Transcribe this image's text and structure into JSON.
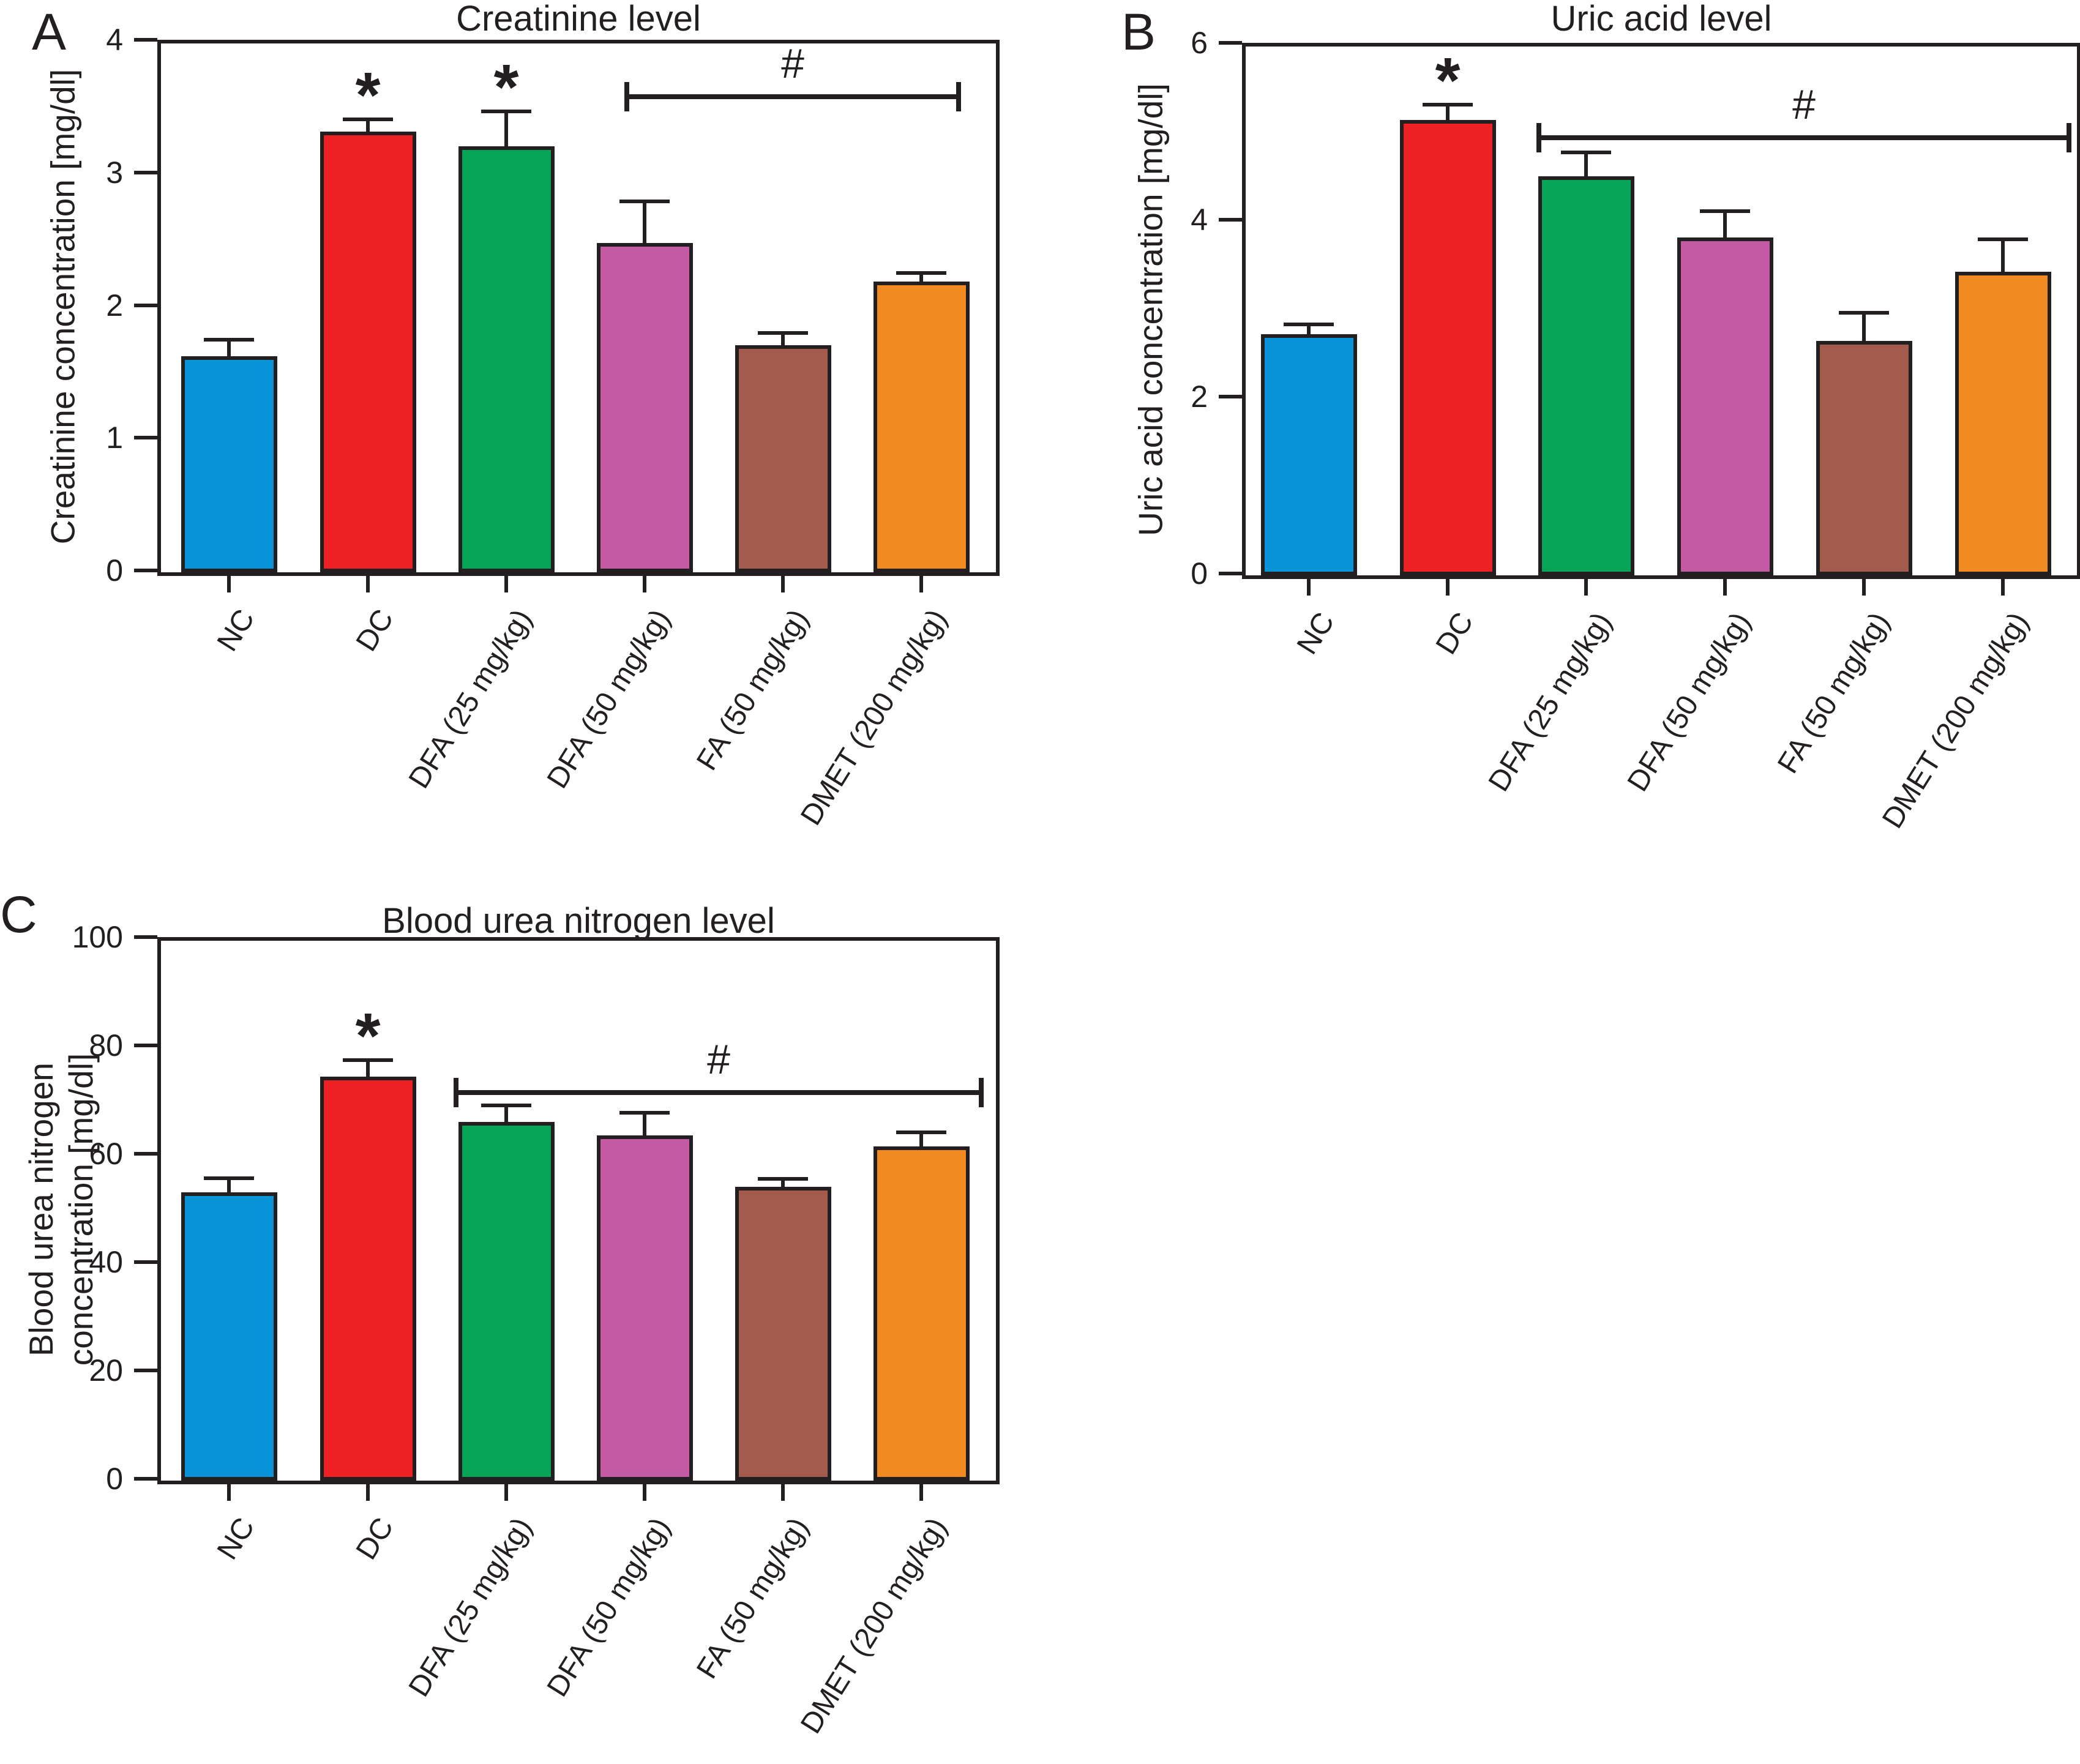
{
  "figure": {
    "background": "#FFFFFF",
    "ink_color": "#231F20",
    "symbols": {
      "significance_star": "*",
      "significance_hash": "#"
    }
  },
  "chart_data": [
    {
      "type": "bar",
      "panel_letter": "A",
      "title": "Creatinine level",
      "ylabel": "Creatinine concentration [mg/dl]",
      "ylabel_display": "Creatinine concentration [mg/dl]",
      "xlabel": "",
      "categories": [
        "NC",
        "DC",
        "DFA (25 mg/kg)",
        "DFA (50 mg/kg)",
        "FA (50 mg/kg)",
        "DMET (200 mg/kg)"
      ],
      "values": [
        1.63,
        3.32,
        3.21,
        2.48,
        1.71,
        2.19
      ],
      "errors": [
        0.11,
        0.08,
        0.25,
        0.3,
        0.08,
        0.05
      ],
      "ylim": [
        0,
        4
      ],
      "yticks": [
        0,
        1,
        2,
        3,
        4
      ],
      "grid": false,
      "legend": "none",
      "bar_colors": [
        "#0994D8",
        "#ED2024",
        "#06A456",
        "#C55AA4",
        "#A25B4C",
        "#F28A22"
      ],
      "star_indices": [
        1,
        2
      ],
      "bracket": {
        "label": "#",
        "from_category": "DFA (50 mg/kg)",
        "to_category": "DMET (200 mg/kg)",
        "y_value": 3.57
      }
    },
    {
      "type": "bar",
      "panel_letter": "B",
      "title": "Uric acid level",
      "ylabel": "Uric acid concentration [mg/dl]",
      "ylabel_display": "Uric acid concentration [mg/dl]",
      "xlabel": "",
      "categories": [
        "NC",
        "DC",
        "DFA (25 mg/kg)",
        "DFA (50 mg/kg)",
        "FA (50 mg/kg)",
        "DMET (200 mg/kg)"
      ],
      "values": [
        2.73,
        5.15,
        4.51,
        3.82,
        2.65,
        3.43
      ],
      "errors": [
        0.09,
        0.15,
        0.25,
        0.28,
        0.3,
        0.35
      ],
      "ylim": [
        0,
        6
      ],
      "yticks": [
        0,
        2,
        4,
        6
      ],
      "grid": false,
      "legend": "none",
      "bar_colors": [
        "#0994D8",
        "#ED2024",
        "#06A456",
        "#C55AA4",
        "#A25B4C",
        "#F28A22"
      ],
      "star_indices": [
        1
      ],
      "bracket": {
        "label": "#",
        "from_category": "DFA (25 mg/kg)",
        "to_category": "DMET (200 mg/kg)",
        "y_value": 4.93
      }
    },
    {
      "type": "bar",
      "panel_letter": "C",
      "title": "Blood urea nitrogen level",
      "ylabel": "Blood urea nitrogen concentration [mg/dl]",
      "ylabel_display": "Blood urea nitrogen\nconcentration [mg/dl]",
      "xlabel": "",
      "categories": [
        "NC",
        "DC",
        "DFA (25 mg/kg)",
        "DFA (50 mg/kg)",
        "FA (50 mg/kg)",
        "DMET (200 mg/kg)"
      ],
      "values": [
        53.2,
        74.6,
        66.2,
        63.7,
        54.2,
        61.7
      ],
      "errors": [
        2.3,
        2.7,
        2.7,
        3.9,
        1.2,
        2.3
      ],
      "ylim": [
        0,
        100
      ],
      "yticks": [
        0,
        20,
        40,
        60,
        80,
        100
      ],
      "grid": false,
      "legend": "none",
      "bar_colors": [
        "#0994D8",
        "#ED2024",
        "#06A456",
        "#C55AA4",
        "#A25B4C",
        "#F28A22"
      ],
      "star_indices": [
        1
      ],
      "bracket": {
        "label": "#",
        "from_category": "DFA (25 mg/kg)",
        "to_category": "DMET (200 mg/kg)",
        "y_value": 71.3
      }
    }
  ]
}
